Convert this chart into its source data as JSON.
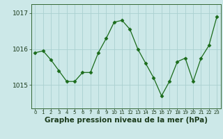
{
  "hours": [
    0,
    1,
    2,
    3,
    4,
    5,
    6,
    7,
    8,
    9,
    10,
    11,
    12,
    13,
    14,
    15,
    16,
    17,
    18,
    19,
    20,
    21,
    22,
    23
  ],
  "pressure": [
    1015.9,
    1015.95,
    1015.7,
    1015.4,
    1015.1,
    1015.1,
    1015.35,
    1015.35,
    1015.9,
    1016.3,
    1016.75,
    1016.8,
    1016.55,
    1016.0,
    1015.6,
    1015.2,
    1014.7,
    1015.1,
    1015.65,
    1015.75,
    1015.1,
    1015.75,
    1016.1,
    1016.9
  ],
  "line_color": "#1a6b1a",
  "marker": "D",
  "markersize": 2.5,
  "background_color": "#cce8e8",
  "grid_color": "#aad0d0",
  "xlabel": "Graphe pression niveau de la mer (hPa)",
  "xlabel_fontsize": 7.5,
  "ytick_labels": [
    "1015",
    "1016",
    "1017"
  ],
  "ytick_values": [
    1015,
    1016,
    1017
  ],
  "ylim": [
    1014.35,
    1017.25
  ],
  "xlim": [
    -0.5,
    23.5
  ]
}
